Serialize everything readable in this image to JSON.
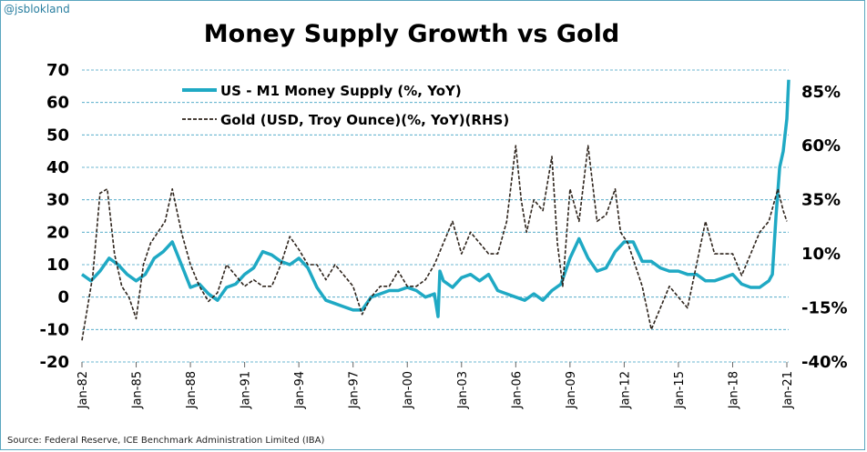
{
  "handle": "@jsblokland",
  "source": "Source: Federal Reserve, ICE Benchmark Administration Limited (IBA)",
  "chart_data": {
    "type": "line",
    "title": "Money Supply Growth vs Gold",
    "y_left": {
      "range": [
        -20,
        70
      ],
      "ticks": [
        "70",
        "60",
        "50",
        "40",
        "30",
        "20",
        "10",
        "0",
        "-10",
        "-20"
      ]
    },
    "y_right": {
      "range": [
        -40,
        95
      ],
      "ticks": [
        "85%",
        "60%",
        "35%",
        "10%",
        "-15%",
        "-40%"
      ]
    },
    "x_ticks": [
      "Jan-82",
      "Jan-85",
      "Jan-88",
      "Jan-91",
      "Jan-94",
      "Jan-97",
      "Jan-00",
      "Jan-03",
      "Jan-06",
      "Jan-09",
      "Jan-12",
      "Jan-15",
      "Jan-18",
      "Jan-21"
    ],
    "grid": "horizontal",
    "legend_position": "top-left",
    "series": [
      {
        "name": "US - M1 Money Supply (%, YoY)",
        "axis": "left",
        "color": "#1fa9c4",
        "style": "solid",
        "x": [
          1982.0,
          1982.5,
          1983.0,
          1983.5,
          1984.0,
          1984.5,
          1985.0,
          1985.5,
          1986.0,
          1986.5,
          1987.0,
          1987.5,
          1988.0,
          1988.5,
          1989.0,
          1989.5,
          1990.0,
          1990.5,
          1991.0,
          1991.5,
          1992.0,
          1992.5,
          1993.0,
          1993.5,
          1994.0,
          1994.5,
          1995.0,
          1995.5,
          1996.0,
          1996.5,
          1997.0,
          1997.5,
          1998.0,
          1998.5,
          1999.0,
          1999.5,
          2000.0,
          2000.5,
          2001.0,
          2001.5,
          2001.7,
          2001.8,
          2002.0,
          2002.5,
          2003.0,
          2003.5,
          2004.0,
          2004.5,
          2005.0,
          2005.5,
          2006.0,
          2006.5,
          2007.0,
          2007.5,
          2008.0,
          2008.5,
          2009.0,
          2009.5,
          2010.0,
          2010.5,
          2011.0,
          2011.5,
          2012.0,
          2012.5,
          2013.0,
          2013.5,
          2014.0,
          2014.5,
          2015.0,
          2015.5,
          2016.0,
          2016.5,
          2017.0,
          2017.5,
          2018.0,
          2018.5,
          2019.0,
          2019.5,
          2020.0,
          2020.2,
          2020.4,
          2020.6,
          2020.8,
          2021.0,
          2021.1
        ],
        "values": [
          7,
          5,
          8,
          12,
          10,
          7,
          5,
          7,
          12,
          14,
          17,
          10,
          3,
          4,
          1,
          -1,
          3,
          4,
          7,
          9,
          14,
          13,
          11,
          10,
          12,
          9,
          3,
          -1,
          -2,
          -3,
          -4,
          -4,
          0,
          1,
          2,
          2,
          3,
          2,
          0,
          1,
          -6,
          8,
          5,
          3,
          6,
          7,
          5,
          7,
          2,
          1,
          0,
          -1,
          1,
          -1,
          2,
          4,
          12,
          18,
          12,
          8,
          9,
          14,
          17,
          17,
          11,
          11,
          9,
          8,
          8,
          7,
          7,
          5,
          5,
          6,
          7,
          4,
          3,
          3,
          5,
          7,
          25,
          40,
          45,
          55,
          67
        ]
      },
      {
        "name": "Gold (USD, Troy Ounce)(%, YoY)(RHS)",
        "axis": "right",
        "color": "#2e241c",
        "style": "dashed",
        "x": [
          1982.0,
          1982.3,
          1982.6,
          1983.0,
          1983.4,
          1983.8,
          1984.2,
          1984.6,
          1985.0,
          1985.4,
          1985.8,
          1986.2,
          1986.6,
          1987.0,
          1987.5,
          1988.0,
          1988.5,
          1989.0,
          1989.5,
          1990.0,
          1990.5,
          1991.0,
          1991.5,
          1992.0,
          1992.5,
          1993.0,
          1993.5,
          1994.0,
          1994.5,
          1995.0,
          1995.5,
          1996.0,
          1996.5,
          1997.0,
          1997.5,
          1998.0,
          1998.5,
          1999.0,
          1999.5,
          2000.0,
          2000.5,
          2001.0,
          2001.5,
          2002.0,
          2002.5,
          2003.0,
          2003.5,
          2004.0,
          2004.5,
          2005.0,
          2005.5,
          2006.0,
          2006.3,
          2006.6,
          2007.0,
          2007.5,
          2008.0,
          2008.3,
          2008.6,
          2009.0,
          2009.5,
          2010.0,
          2010.5,
          2011.0,
          2011.5,
          2011.8,
          2012.2,
          2012.6,
          2013.0,
          2013.5,
          2014.0,
          2014.5,
          2015.0,
          2015.5,
          2016.0,
          2016.5,
          2017.0,
          2017.5,
          2018.0,
          2018.5,
          2019.0,
          2019.5,
          2020.0,
          2020.5,
          2020.8,
          2021.0
        ],
        "values": [
          -30,
          -15,
          0,
          38,
          40,
          10,
          -5,
          -10,
          -20,
          5,
          15,
          20,
          25,
          40,
          20,
          5,
          -5,
          -12,
          -8,
          5,
          0,
          -5,
          -2,
          -5,
          -5,
          5,
          18,
          12,
          5,
          5,
          -2,
          5,
          0,
          -5,
          -18,
          -10,
          -5,
          -5,
          2,
          -5,
          -5,
          -2,
          5,
          15,
          25,
          10,
          20,
          15,
          10,
          10,
          25,
          60,
          35,
          20,
          35,
          30,
          55,
          15,
          -5,
          40,
          25,
          60,
          25,
          28,
          40,
          20,
          15,
          5,
          -5,
          -25,
          -15,
          -5,
          -10,
          -15,
          5,
          25,
          10,
          10,
          10,
          0,
          10,
          20,
          25,
          40,
          30,
          25
        ]
      }
    ]
  }
}
